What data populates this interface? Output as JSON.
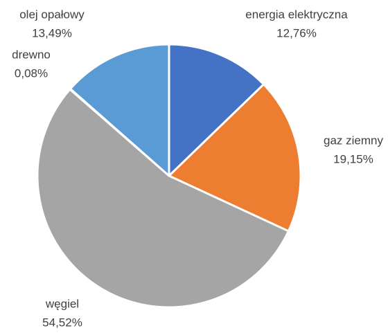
{
  "chart_data": {
    "type": "pie",
    "categories": [
      "energia elektryczna",
      "gaz ziemny",
      "węgiel",
      "drewno",
      "olej opałowy"
    ],
    "values": [
      12.76,
      19.15,
      54.52,
      0.08,
      13.49
    ],
    "value_labels": [
      "12,76%",
      "19,15%",
      "54,52%",
      "0,08%",
      "13,49%"
    ],
    "colors": [
      "#4472c4",
      "#ed7d31",
      "#a5a5a5",
      "#ffc000",
      "#5b9bd5"
    ]
  }
}
